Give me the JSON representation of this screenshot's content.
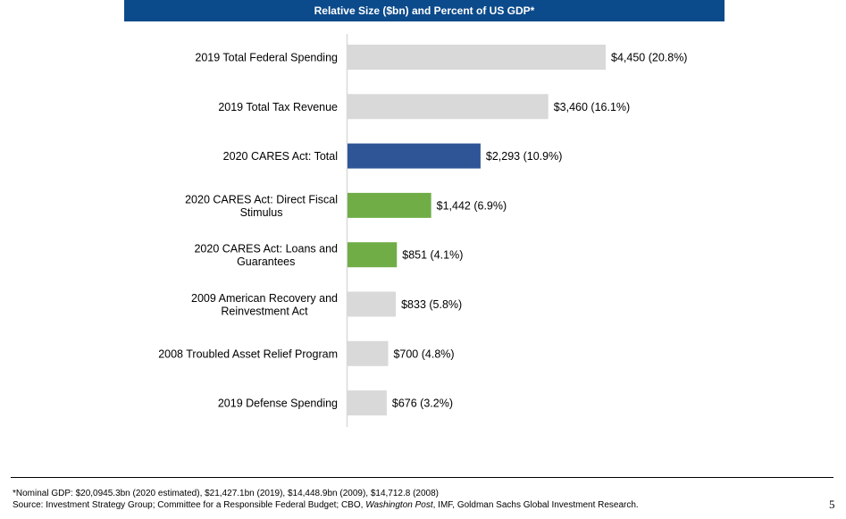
{
  "header": {
    "title": "Relative Size ($bn) and Percent of US GDP*"
  },
  "chart_data": {
    "type": "bar",
    "orientation": "horizontal",
    "title": "Relative Size ($bn) and Percent of US GDP*",
    "xlabel": "",
    "ylabel": "",
    "xlim": [
      0,
      4450
    ],
    "grid": false,
    "legend": "none",
    "categories": [
      "2019 Total Federal Spending",
      "2019 Total Tax Revenue",
      "2020 CARES Act: Total",
      "2020 CARES Act: Direct Fiscal Stimulus",
      "2020 CARES Act: Loans and Guarantees",
      "2009 American Recovery and Reinvestment Act",
      "2008 Troubled Asset Relief Program",
      "2019 Defense Spending"
    ],
    "category_lines": [
      [
        "2019 Total Federal Spending"
      ],
      [
        "2019 Total Tax Revenue"
      ],
      [
        "2020 CARES Act: Total"
      ],
      [
        "2020 CARES Act: Direct Fiscal",
        "Stimulus"
      ],
      [
        "2020 CARES Act: Loans and",
        "Guarantees"
      ],
      [
        "2009 American Recovery and",
        "Reinvestment Act"
      ],
      [
        "2008 Troubled Asset Relief Program"
      ],
      [
        "2019 Defense Spending"
      ]
    ],
    "values": [
      4450,
      3460,
      2293,
      1442,
      851,
      833,
      700,
      676
    ],
    "percent_of_gdp": [
      20.8,
      16.1,
      10.9,
      6.9,
      4.1,
      5.8,
      4.8,
      3.2
    ],
    "data_labels": [
      "$4,450 (20.8%)",
      "$3,460 (16.1%)",
      "$2,293 (10.9%)",
      "$1,442 (6.9%)",
      "$851 (4.1%)",
      "$833 (5.8%)",
      "$700 (4.8%)",
      "$676 (3.2%)"
    ],
    "colors": [
      "#d9d9d9",
      "#d9d9d9",
      "#2f5597",
      "#70ad47",
      "#70ad47",
      "#d9d9d9",
      "#d9d9d9",
      "#d9d9d9"
    ]
  },
  "footer": {
    "note": "*Nominal GDP: $20,0945.3bn (2020 estimated), $21,427.1bn (2019), $14,448.9bn (2009), $14,712.8 (2008)",
    "source_prefix": "Source: Investment Strategy Group; Committee for a Responsible Federal Budget; CBO, ",
    "source_italic": "Washington Post",
    "source_suffix": ", IMF, Goldman Sachs Global Investment Research.",
    "page_number": "5"
  }
}
